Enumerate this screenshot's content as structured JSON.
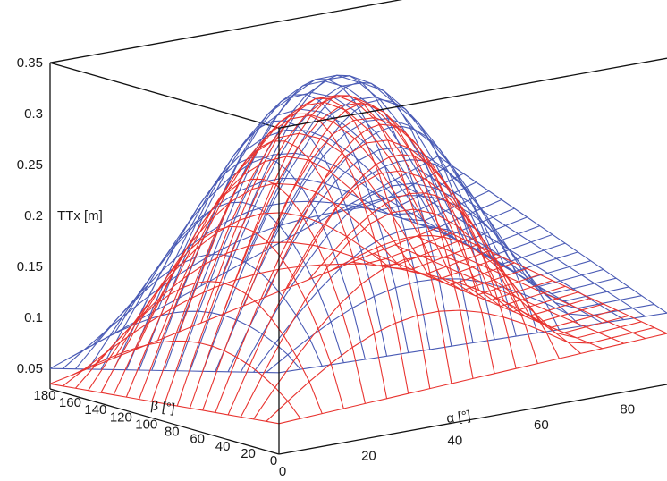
{
  "chart_data": {
    "type": "surface",
    "title": "",
    "zlabel": "TTx [m]",
    "alpha_label": "α [°]",
    "beta_label": "β [°]",
    "z_ticks": [
      "0.05",
      "0.1",
      "0.15",
      "0.2",
      "0.25",
      "0.3",
      "0.35"
    ],
    "alpha_ticks": [
      "0",
      "20",
      "40",
      "60",
      "80"
    ],
    "beta_ticks": [
      "0",
      "20",
      "40",
      "60",
      "80",
      "100",
      "120",
      "140",
      "160",
      "180"
    ],
    "alpha_range": [
      0,
      90
    ],
    "beta_range": [
      0,
      180
    ],
    "z_range": [
      0.03,
      0.35
    ],
    "grid": "box",
    "series": [
      {
        "color": "#4a5bb5",
        "alpha": [
          0,
          5,
          10,
          15,
          20,
          25,
          30,
          35,
          40,
          45,
          50,
          55,
          60,
          65,
          70,
          75,
          80,
          85,
          90
        ],
        "beta": [
          0,
          10,
          20,
          30,
          40,
          50,
          60,
          70,
          80,
          90,
          100,
          110,
          120,
          130,
          140,
          150,
          160,
          170,
          180
        ],
        "corner_values": {
          "alpha0_beta0": 0.11,
          "alpha90_beta0": 0.1,
          "alpha0_beta180": 0.05,
          "alpha90_beta180": 0.19
        },
        "peak": 0.35
      },
      {
        "color": "#e8332f",
        "alpha": [
          0,
          5,
          10,
          15,
          20,
          25,
          30,
          35,
          40,
          45,
          50,
          55,
          60,
          65,
          70,
          75,
          80,
          85,
          90
        ],
        "beta": [
          0,
          10,
          20,
          30,
          40,
          50,
          60,
          70,
          80,
          90,
          100,
          110,
          120,
          130,
          140,
          150,
          160,
          170,
          180
        ],
        "corner_values": {
          "alpha0_beta0": 0.06,
          "alpha90_beta0": 0.08,
          "alpha0_beta180": 0.035,
          "alpha90_beta180": 0.12
        },
        "peak": 0.33
      }
    ]
  }
}
